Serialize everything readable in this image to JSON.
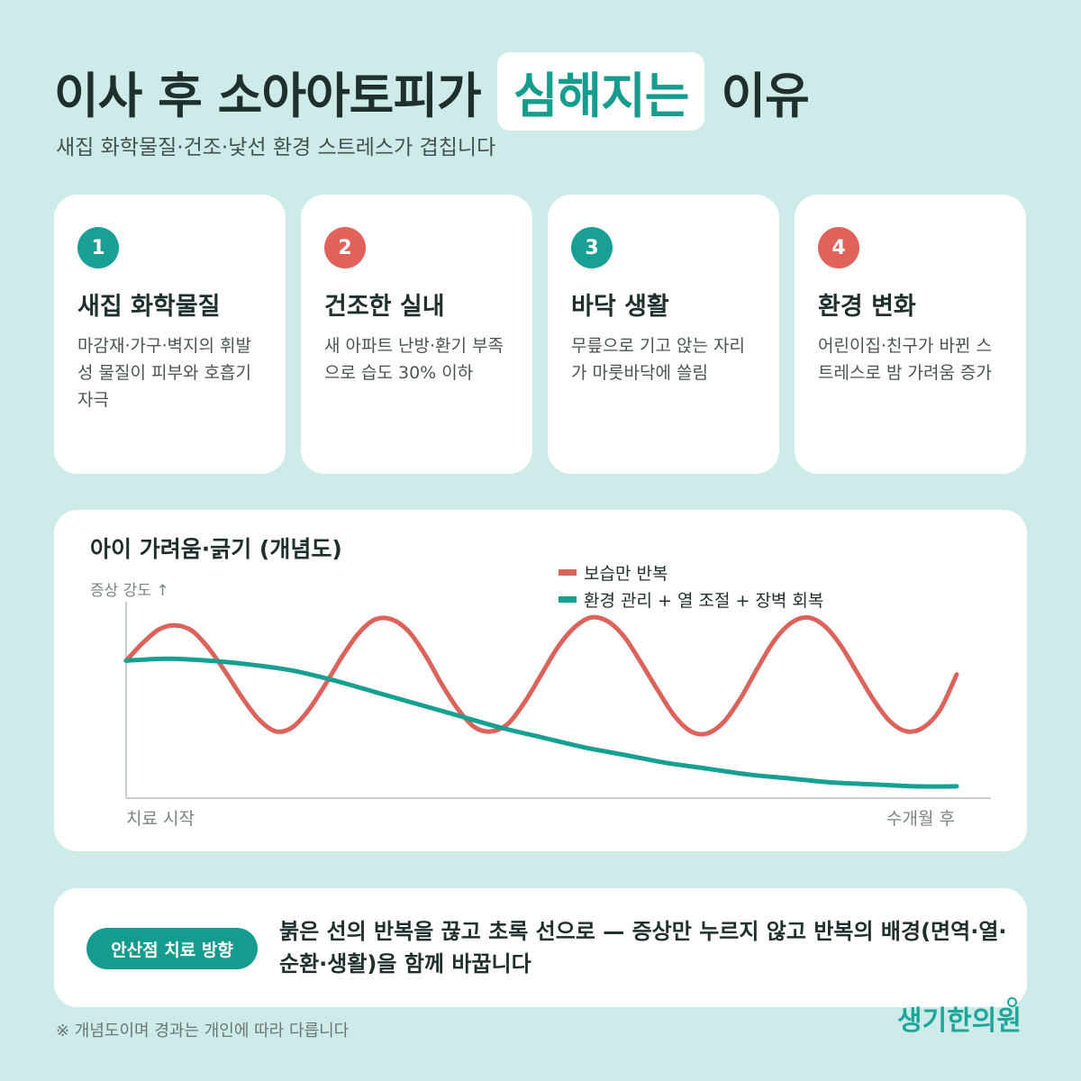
{
  "header": {
    "title_before": "이사 후 소아아토피가",
    "title_highlight": "심해지는",
    "title_after": "이유",
    "subtitle": "새집 화학물질·건조·낯선 환경 스트레스가 겹칩니다"
  },
  "cards": [
    {
      "number": "1",
      "title": "새집 화학물질",
      "desc": "마감재·가구·벽지의 휘발성 물질이 피부와 호흡기 자극",
      "color": "#17a093"
    },
    {
      "number": "2",
      "title": "건조한 실내",
      "desc": "새 아파트 난방·환기 부족으로 습도 30% 이하",
      "color": "#e0625b"
    },
    {
      "number": "3",
      "title": "바닥 생활",
      "desc": "무릎으로 기고 앉는 자리가 마룻바닥에 쓸림",
      "color": "#17a093"
    },
    {
      "number": "4",
      "title": "환경 변화",
      "desc": "어린이집·친구가 바뀐 스트레스로 밤 가려움 증가",
      "color": "#e0625b"
    }
  ],
  "chart_data": {
    "type": "line",
    "title": "아이 가려움·긁기 (개념도)",
    "ylabel": "증상 강도 ↑",
    "x_start_label": "치료 시작",
    "x_end_label": "수개월 후",
    "xlim": [
      0,
      10
    ],
    "ylim": [
      0,
      10
    ],
    "grid": false,
    "legend_position": "top-right",
    "series": [
      {
        "name": "보습만 반복",
        "color": "#dc625c",
        "x": [
          0,
          0.2,
          0.4,
          0.6,
          0.8,
          1.0,
          1.2,
          1.4,
          1.6,
          1.8,
          2.0,
          2.2,
          2.4,
          2.6,
          2.8,
          3.0,
          3.2,
          3.4,
          3.6,
          3.8,
          4.0,
          4.2,
          4.4,
          4.6,
          4.8,
          5.0,
          5.2,
          5.4,
          5.6,
          5.8,
          6.0,
          6.2,
          6.4,
          6.6,
          6.8,
          7.0,
          7.2,
          7.4,
          7.6,
          7.8,
          8.0,
          8.2,
          8.4,
          8.6,
          8.8,
          9.0,
          9.2,
          9.4,
          9.6,
          9.8,
          10.0
        ],
        "values": [
          7.0,
          7.9,
          8.6,
          8.8,
          8.5,
          7.6,
          6.4,
          5.1,
          4.0,
          3.4,
          3.6,
          4.5,
          5.8,
          7.2,
          8.4,
          9.1,
          9.1,
          8.5,
          7.3,
          5.8,
          4.5,
          3.6,
          3.4,
          3.8,
          4.9,
          6.3,
          7.7,
          8.7,
          9.2,
          9.0,
          8.2,
          6.9,
          5.5,
          4.2,
          3.4,
          3.3,
          3.9,
          5.1,
          6.6,
          8.0,
          8.9,
          9.2,
          8.8,
          7.8,
          6.4,
          5.0,
          3.9,
          3.4,
          3.6,
          4.5,
          6.3
        ]
      },
      {
        "name": "환경 관리 + 열 조절 + 장벽 회복",
        "color": "#16a091",
        "x": [
          0,
          0.5,
          1.0,
          1.5,
          2.0,
          2.5,
          3.0,
          3.5,
          4.0,
          4.5,
          5.0,
          5.5,
          6.0,
          6.5,
          7.0,
          7.5,
          8.0,
          8.5,
          9.0,
          9.5,
          10.0
        ],
        "values": [
          7.0,
          7.1,
          7.0,
          6.8,
          6.5,
          6.0,
          5.4,
          4.8,
          4.2,
          3.6,
          3.1,
          2.6,
          2.2,
          1.8,
          1.5,
          1.2,
          1.0,
          0.8,
          0.7,
          0.6,
          0.6
        ]
      }
    ]
  },
  "bottom": {
    "pill": "안산점 치료 방향",
    "text": "붉은 선의 반복을 끊고 초록 선으로 — 증상만 누르지 않고 반복의 배경(면역·열·순환·생활)을 함께 바꿉니다"
  },
  "footnote": "※ 개념도이며 경과는 개인에 따라 다릅니다",
  "logo": "생기한의원"
}
